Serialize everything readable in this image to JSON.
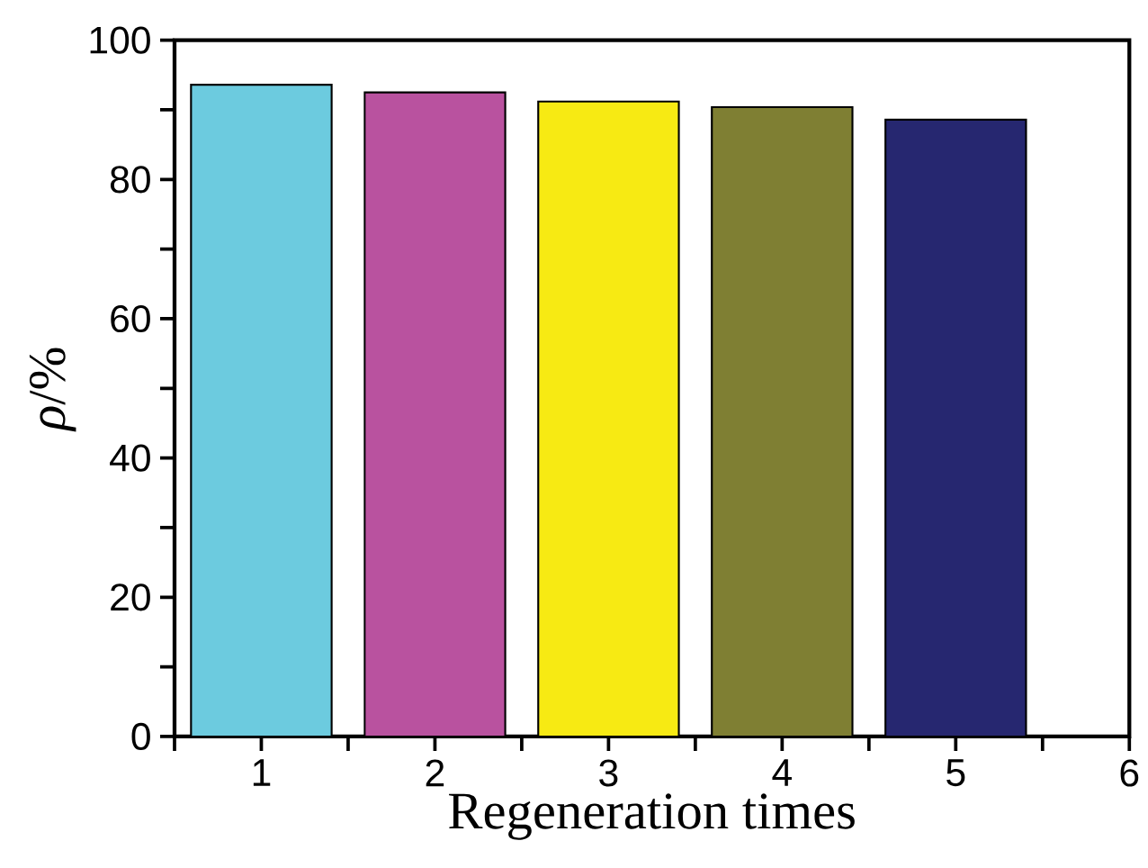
{
  "chart_data": {
    "type": "bar",
    "xlabel": "Regeneration times",
    "ylabel": "*ρ*/%",
    "x": [
      1,
      2,
      3,
      4,
      5
    ],
    "values": [
      93.6,
      92.5,
      91.2,
      90.4,
      88.6
    ],
    "colors": [
      "#6ccbdf",
      "#b9529f",
      "#f7ea13",
      "#7f7f33",
      "#262770"
    ],
    "xlim": [
      0.5,
      6
    ],
    "xticks": [
      {
        "value": 0.5,
        "label": null
      },
      1,
      {
        "value": 1.5,
        "label": null
      },
      2,
      {
        "value": 2.5,
        "label": null
      },
      3,
      {
        "value": 3.5,
        "label": null
      },
      4,
      {
        "value": 4.5,
        "label": null
      },
      5,
      {
        "value": 5.5,
        "label": null
      },
      6
    ],
    "ylim": [
      0,
      100
    ],
    "yticks": [
      0,
      {
        "value": 10,
        "label": null
      },
      20,
      {
        "value": 30,
        "label": null
      },
      40,
      {
        "value": 50,
        "label": null
      },
      60,
      {
        "value": 70,
        "label": null
      },
      80,
      {
        "value": 90,
        "label": null
      },
      100
    ]
  }
}
